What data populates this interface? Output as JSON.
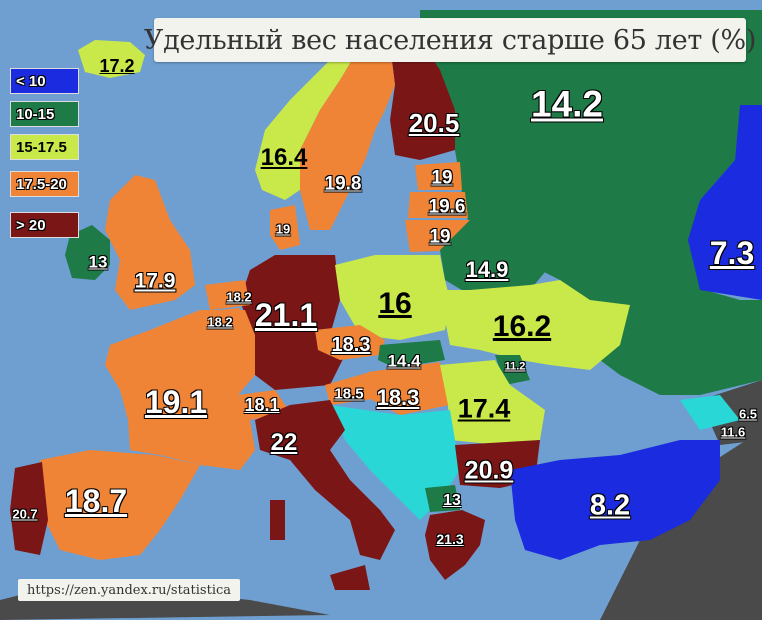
{
  "title": "Удельный вес населения старше 65 лет (%)",
  "source": "https://zen.yandex.ru/statistica",
  "legend": [
    {
      "label": "< 10",
      "color": "#1a2be0"
    },
    {
      "label": "10-15",
      "color": "#1e7a46"
    },
    {
      "label": "15-17.5",
      "color": "#c9e84a"
    },
    {
      "label": "17.5-20",
      "color": "#f08436"
    },
    {
      "label": "> 20",
      "color": "#7a1616"
    }
  ],
  "regions": {
    "iceland": "17.2",
    "ireland": "13",
    "uk": "17.9",
    "france": "19.1",
    "spain": "18.7",
    "portugal": "20.7",
    "belgium": "18.2",
    "luxembourg": "18.2",
    "germany": "21.1",
    "denmark": "19",
    "norway": "16.4",
    "sweden": "19.8",
    "finland": "20.5",
    "estonia": "19",
    "latvia": "19.6",
    "lithuania": "19",
    "russia": "14.2",
    "kazakhstan": "7.3",
    "belarus": "14.9",
    "poland": "16",
    "ukraine": "16.2",
    "czechia": "18.3",
    "slovakia": "14.4",
    "moldova": "11.2",
    "austria": "18.5",
    "hungary": "18.3",
    "romania": "17.4",
    "switzerland": "18.1",
    "italy": "22",
    "bulgaria": "20.9",
    "turkey": "8.2",
    "georgia": "6.5",
    "armenia": "11.6",
    "north_macedonia": "13",
    "greece": "21.3"
  }
}
